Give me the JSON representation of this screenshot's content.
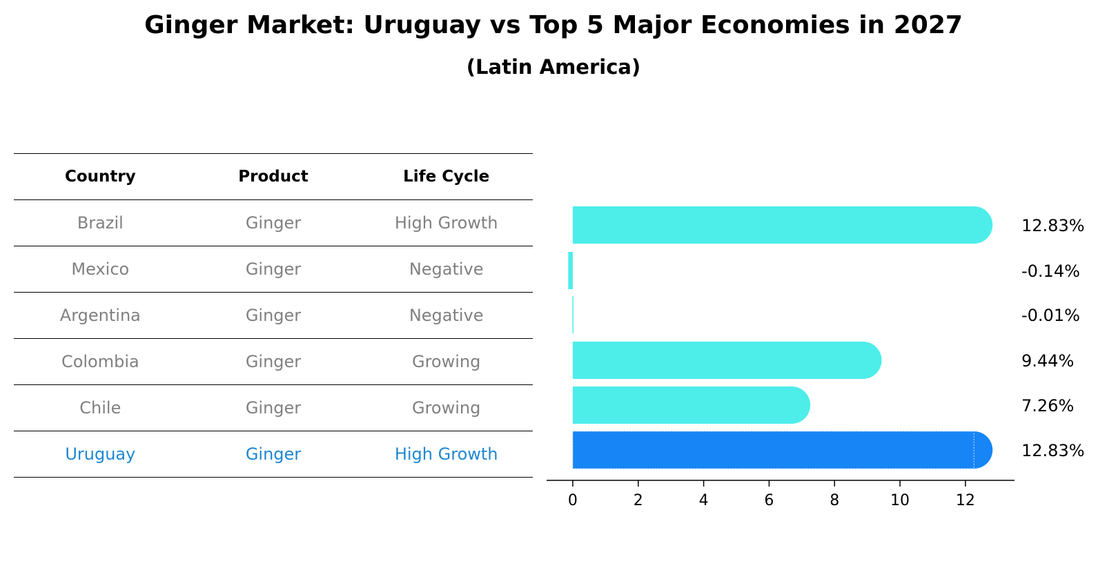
{
  "title": "Ginger Market: Uruguay vs Top 5 Major Economies in 2027",
  "subtitle": "(Latin America)",
  "table": {
    "headers": [
      "Country",
      "Product",
      "Life Cycle"
    ],
    "rows": [
      {
        "country": "Brazil",
        "product": "Ginger",
        "life_cycle": "High Growth"
      },
      {
        "country": "Mexico",
        "product": "Ginger",
        "life_cycle": "Negative"
      },
      {
        "country": "Argentina",
        "product": "Ginger",
        "life_cycle": "Negative"
      },
      {
        "country": "Colombia",
        "product": "Ginger",
        "life_cycle": "Growing"
      },
      {
        "country": "Chile",
        "product": "Ginger",
        "life_cycle": "Growing"
      },
      {
        "country": "Uruguay",
        "product": "Ginger",
        "life_cycle": "High Growth"
      }
    ]
  },
  "chart_data": {
    "type": "bar",
    "orientation": "horizontal",
    "categories": [
      "Brazil",
      "Mexico",
      "Argentina",
      "Colombia",
      "Chile",
      "Uruguay"
    ],
    "values": [
      12.83,
      -0.14,
      -0.01,
      9.44,
      7.26,
      12.83
    ],
    "value_labels": [
      "12.83%",
      "-0.14%",
      "-0.01%",
      "9.44%",
      "7.26%",
      "12.83%"
    ],
    "highlight": "Uruguay",
    "xlim": [
      -0.8,
      13.5
    ],
    "xticks": [
      0,
      2,
      4,
      6,
      8,
      10,
      12
    ],
    "xlabel": "",
    "ylabel": "",
    "grid": false,
    "colors": {
      "default": "#4deeea",
      "highlight": "#1785f5",
      "axis": "#000000"
    }
  },
  "colors": {
    "muted_text": "#808080",
    "highlight_text": "#1f87d2"
  }
}
